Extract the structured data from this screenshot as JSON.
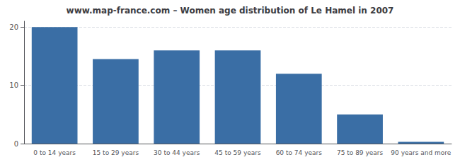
{
  "chart_data": {
    "type": "bar",
    "title": "www.map-france.com – Women age distribution of Le Hamel in 2007",
    "categories": [
      "0 to 14 years",
      "15 to 29 years",
      "30 to 44 years",
      "45 to 59 years",
      "60 to 74 years",
      "75 to 89 years",
      "90 years and more"
    ],
    "values": [
      20,
      14.5,
      16,
      16,
      12,
      5,
      0.3
    ],
    "color": "#3a6ea5",
    "ylim": [
      0,
      21
    ],
    "yticks": [
      0,
      10,
      20
    ],
    "grid": true
  }
}
